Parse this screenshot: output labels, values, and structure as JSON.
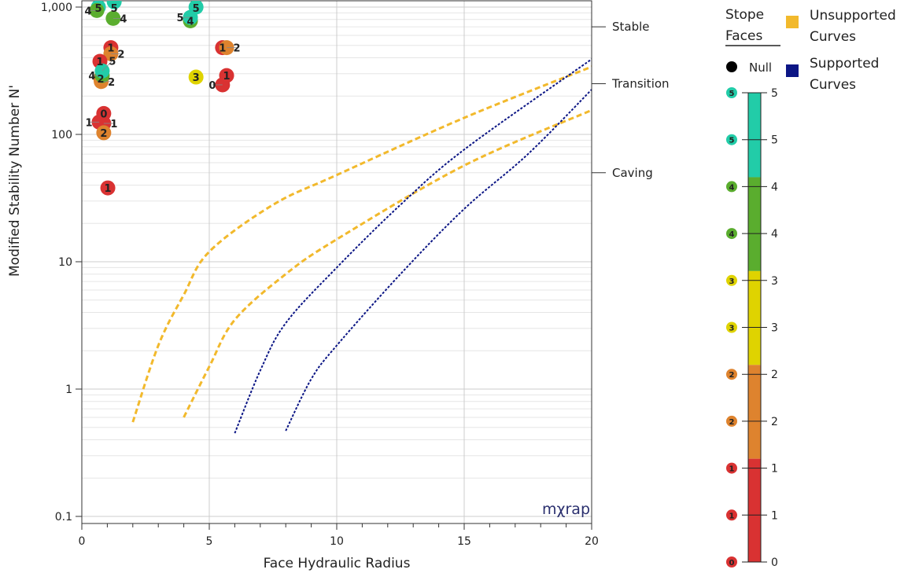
{
  "chart_data": {
    "type": "scatter",
    "xlabel": "Face Hydraulic Radius",
    "ylabel": "Modified Stability Number N'",
    "xlim": [
      0,
      20
    ],
    "ylim": [
      0.1,
      1000
    ],
    "yscale": "log",
    "grid": true,
    "xticks": [
      "0",
      "5",
      "10",
      "15",
      "20"
    ],
    "xtick_values": [
      0,
      5,
      10,
      15,
      20
    ],
    "yticks": [
      "0.1",
      "1",
      "10",
      "100",
      "1,000"
    ],
    "ytick_values": [
      0.1,
      1,
      10,
      100,
      1000
    ],
    "zone_labels": [
      {
        "text": "Stable",
        "y": 700
      },
      {
        "text": "Transition",
        "y": 250
      },
      {
        "text": "Caving",
        "y": 50
      }
    ],
    "watermark": "mχrap",
    "points": [
      {
        "x": 0.65,
        "y": 1000,
        "label": "5"
      },
      {
        "x": 1.27,
        "y": 1100,
        "label": "5"
      },
      {
        "x": 0.59,
        "y": 940,
        "label": "4"
      },
      {
        "x": 1.23,
        "y": 815,
        "label": "4"
      },
      {
        "x": 4.26,
        "y": 780,
        "label": "4"
      },
      {
        "x": 4.48,
        "y": 1000,
        "label": "5"
      },
      {
        "x": 4.26,
        "y": 830,
        "label": "5"
      },
      {
        "x": 1.14,
        "y": 480,
        "label": "1"
      },
      {
        "x": 1.14,
        "y": 430,
        "label": "2"
      },
      {
        "x": 0.71,
        "y": 375,
        "label": "1"
      },
      {
        "x": 0.74,
        "y": 275,
        "label": "2"
      },
      {
        "x": 0.76,
        "y": 260,
        "label": "2"
      },
      {
        "x": 0.8,
        "y": 290,
        "label": "4"
      },
      {
        "x": 0.8,
        "y": 315,
        "label": "5"
      },
      {
        "x": 4.48,
        "y": 282,
        "label": "3"
      },
      {
        "x": 5.52,
        "y": 480,
        "label": "1"
      },
      {
        "x": 5.68,
        "y": 480,
        "label": "2"
      },
      {
        "x": 5.68,
        "y": 290,
        "label": "1"
      },
      {
        "x": 5.52,
        "y": 245,
        "label": "0"
      },
      {
        "x": 0.86,
        "y": 146,
        "label": "0"
      },
      {
        "x": 0.68,
        "y": 125,
        "label": "1"
      },
      {
        "x": 0.86,
        "y": 122,
        "label": "1"
      },
      {
        "x": 0.86,
        "y": 103,
        "label": "2"
      },
      {
        "x": 1.02,
        "y": 38,
        "label": "1"
      }
    ],
    "curves": [
      {
        "group": "Unsupported Curves",
        "points": [
          [
            2,
            0.55
          ],
          [
            3,
            2.2
          ],
          [
            4,
            5.5
          ],
          [
            5,
            12
          ],
          [
            7.5,
            28
          ],
          [
            10,
            48
          ],
          [
            15,
            135
          ],
          [
            20,
            340
          ]
        ]
      },
      {
        "group": "Unsupported Curves",
        "points": [
          [
            4,
            0.6
          ],
          [
            5,
            1.5
          ],
          [
            6,
            3.5
          ],
          [
            8,
            8
          ],
          [
            10,
            15
          ],
          [
            15,
            57
          ],
          [
            20,
            155
          ]
        ]
      },
      {
        "group": "Supported Curves",
        "points": [
          [
            6,
            0.45
          ],
          [
            7,
            1.4
          ],
          [
            8,
            3.3
          ],
          [
            10,
            9
          ],
          [
            12.5,
            28
          ],
          [
            15,
            76
          ],
          [
            20,
            390
          ]
        ]
      },
      {
        "group": "Supported Curves",
        "points": [
          [
            8,
            0.47
          ],
          [
            9,
            1.2
          ],
          [
            10,
            2.2
          ],
          [
            12.5,
            8
          ],
          [
            15,
            26
          ],
          [
            17.5,
            70
          ],
          [
            20,
            225
          ]
        ]
      }
    ],
    "legend": {
      "title": "Stope Faces",
      "null_label": "Null",
      "unsupported": "Unsupported Curves",
      "supported": "Supported Curves",
      "unsupported_lines": [
        "Unsupported",
        "Curves"
      ],
      "supported_lines": [
        "Supported",
        "Curves"
      ],
      "unsupported_color": "#f2b92c",
      "supported_color": "#0c1685"
    },
    "colorbar": {
      "range": [
        0,
        5
      ],
      "ticks": [
        "5",
        "5",
        "4",
        "4",
        "3",
        "3",
        "2",
        "2",
        "1",
        "1",
        "0"
      ],
      "bands": [
        {
          "from": 4.1,
          "to": 5,
          "color": "#22cca8"
        },
        {
          "from": 3.1,
          "to": 4.1,
          "color": "#5aad2e"
        },
        {
          "from": 2.1,
          "to": 3.1,
          "color": "#dfd300"
        },
        {
          "from": 1.1,
          "to": 2.1,
          "color": "#de832e"
        },
        {
          "from": 0,
          "to": 1.1,
          "color": "#d93232"
        }
      ]
    },
    "label_colors": {
      "0": "#d93232",
      "1": "#d93232",
      "2": "#de832e",
      "3": "#dfd300",
      "4": "#5aad2e",
      "5": "#22cca8"
    }
  }
}
